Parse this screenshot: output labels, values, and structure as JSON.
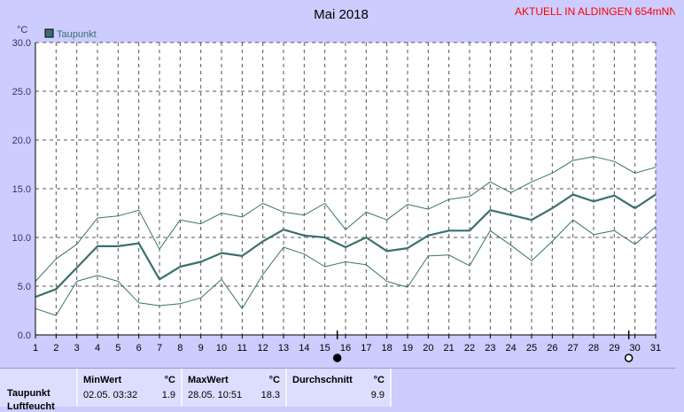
{
  "header": {
    "title": "Mai 2018",
    "station": "AKTUELL IN ALDINGEN 654mNN"
  },
  "chart_data": {
    "type": "line",
    "title": "Mai 2018",
    "ylabel": "°C",
    "xlabel": "",
    "ylim": [
      0,
      30
    ],
    "yticks": [
      "0.0",
      "5.0",
      "10.0",
      "15.0",
      "20.0",
      "25.0",
      "30.0"
    ],
    "x": [
      1,
      2,
      3,
      4,
      5,
      6,
      7,
      8,
      9,
      10,
      11,
      12,
      13,
      14,
      15,
      16,
      17,
      18,
      19,
      20,
      21,
      22,
      23,
      24,
      25,
      26,
      27,
      28,
      29,
      30,
      31
    ],
    "legend": [
      "Taupunkt"
    ],
    "grid": true,
    "colors": {
      "series": "#3a7070",
      "grid": "#555555",
      "title": "#000000",
      "station": "#ff0000",
      "plot_bg": "#ffffff",
      "frame_bg": "#ccccff"
    },
    "series": [
      {
        "name": "Taupunkt",
        "role": "mean",
        "values": [
          3.9,
          4.7,
          6.9,
          9.1,
          9.1,
          9.4,
          5.7,
          7.0,
          7.5,
          8.4,
          8.1,
          9.6,
          10.8,
          10.2,
          10.0,
          9.0,
          10.0,
          8.6,
          8.9,
          10.2,
          10.7,
          10.7,
          12.8,
          12.3,
          11.8,
          13.0,
          14.4,
          13.7,
          14.3,
          13.0,
          14.4
        ]
      },
      {
        "role": "max",
        "values": [
          5.5,
          7.8,
          9.3,
          12.0,
          12.2,
          12.8,
          8.8,
          11.8,
          11.4,
          12.5,
          12.1,
          13.5,
          12.6,
          12.3,
          13.5,
          10.8,
          12.6,
          11.8,
          13.4,
          12.9,
          13.9,
          14.2,
          15.7,
          14.6,
          15.7,
          16.6,
          17.9,
          18.3,
          17.8,
          16.6,
          17.2
        ]
      },
      {
        "role": "min",
        "values": [
          2.7,
          2.0,
          5.5,
          6.1,
          5.5,
          3.3,
          3.0,
          3.2,
          3.8,
          5.7,
          2.7,
          6.2,
          9.0,
          8.3,
          7.0,
          7.5,
          7.2,
          5.5,
          4.9,
          8.1,
          8.2,
          7.1,
          10.7,
          9.2,
          7.6,
          9.6,
          11.8,
          10.3,
          10.7,
          9.3,
          11.1
        ]
      }
    ],
    "markers": [
      {
        "day": 15.6,
        "symbol": "filled-circle"
      },
      {
        "day": 29.7,
        "symbol": "open-circle"
      }
    ]
  },
  "stats": {
    "row_label": "Taupunkt",
    "row_label_2": "Luftfeucht",
    "min": {
      "header": "MinWert",
      "unit": "°C",
      "date": "02.05.  03:32",
      "value": "1.9"
    },
    "max": {
      "header": "MaxWert",
      "unit": "°C",
      "date": "28.05.  10:51",
      "value": "18.3"
    },
    "avg": {
      "header": "Durchschnitt",
      "unit": "°C",
      "value": "9.9"
    }
  }
}
